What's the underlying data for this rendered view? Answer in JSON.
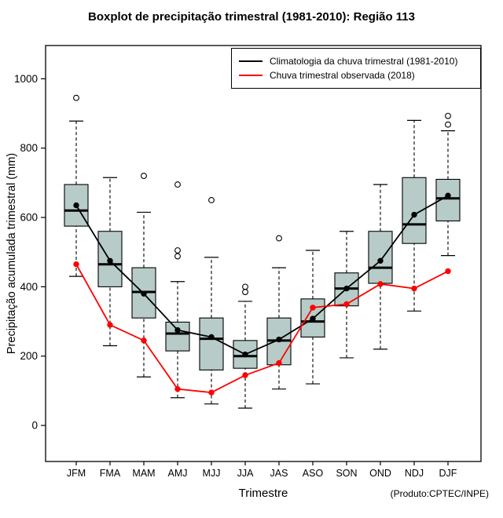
{
  "title": "Boxplot de precipitação trimestral (1981-2010): Região 113",
  "xlabel": "Trimestre",
  "ylabel": "Precipitação acumulada trimestral (mm)",
  "product_note": "(Produto:CPTEC/INPE)",
  "legend": {
    "items": [
      {
        "label": "Climatologia da chuva trimestral (1981-2010)",
        "color": "#000000"
      },
      {
        "label": "Chuva trimestral observada (2018)",
        "color": "#ff0000"
      }
    ]
  },
  "chart_data": {
    "type": "boxplot",
    "title": "Boxplot de precipitação trimestral (1981-2010): Região 113",
    "xlabel": "Trimestre",
    "ylabel": "Precipitação acumulada trimestral (mm)",
    "categories": [
      "JFM",
      "FMA",
      "MAM",
      "AMJ",
      "MJJ",
      "JJA",
      "JAS",
      "ASO",
      "SON",
      "OND",
      "NDJ",
      "DJF"
    ],
    "yticks": [
      0,
      200,
      400,
      600,
      800,
      1000
    ],
    "ylim": [
      -104,
      1096
    ],
    "grid": false,
    "legend_position": "top-right",
    "box_fill": "#b7ccc8",
    "boxes": [
      {
        "whisker_low": 430,
        "q1": 575,
        "median": 620,
        "q3": 695,
        "whisker_high": 878,
        "outliers": [
          945
        ]
      },
      {
        "whisker_low": 230,
        "q1": 400,
        "median": 465,
        "q3": 560,
        "whisker_high": 715,
        "outliers": []
      },
      {
        "whisker_low": 140,
        "q1": 310,
        "median": 385,
        "q3": 455,
        "whisker_high": 615,
        "outliers": [
          720
        ]
      },
      {
        "whisker_low": 80,
        "q1": 215,
        "median": 265,
        "q3": 298,
        "whisker_high": 415,
        "outliers": [
          488,
          505,
          695
        ]
      },
      {
        "whisker_low": 62,
        "q1": 160,
        "median": 250,
        "q3": 310,
        "whisker_high": 485,
        "outliers": [
          650
        ]
      },
      {
        "whisker_low": 50,
        "q1": 165,
        "median": 200,
        "q3": 245,
        "whisker_high": 358,
        "outliers": [
          385,
          400
        ]
      },
      {
        "whisker_low": 105,
        "q1": 175,
        "median": 245,
        "q3": 310,
        "whisker_high": 455,
        "outliers": [
          540
        ]
      },
      {
        "whisker_low": 120,
        "q1": 255,
        "median": 300,
        "q3": 365,
        "whisker_high": 505,
        "outliers": []
      },
      {
        "whisker_low": 195,
        "q1": 345,
        "median": 395,
        "q3": 440,
        "whisker_high": 560,
        "outliers": []
      },
      {
        "whisker_low": 220,
        "q1": 410,
        "median": 455,
        "q3": 560,
        "whisker_high": 695,
        "outliers": []
      },
      {
        "whisker_low": 330,
        "q1": 525,
        "median": 580,
        "q3": 715,
        "whisker_high": 880,
        "outliers": []
      },
      {
        "whisker_low": 490,
        "q1": 590,
        "median": 655,
        "q3": 710,
        "whisker_high": 850,
        "outliers": [
          868,
          893
        ]
      }
    ],
    "series": [
      {
        "name": "Climatologia da chuva trimestral (1981-2010)",
        "color": "#000000",
        "values": [
          635,
          475,
          380,
          275,
          255,
          205,
          248,
          308,
          395,
          475,
          608,
          663
        ]
      },
      {
        "name": "Chuva trimestral observada (2018)",
        "color": "#ff0000",
        "values": [
          465,
          290,
          245,
          105,
          95,
          145,
          180,
          340,
          350,
          408,
          395,
          445
        ]
      }
    ]
  }
}
